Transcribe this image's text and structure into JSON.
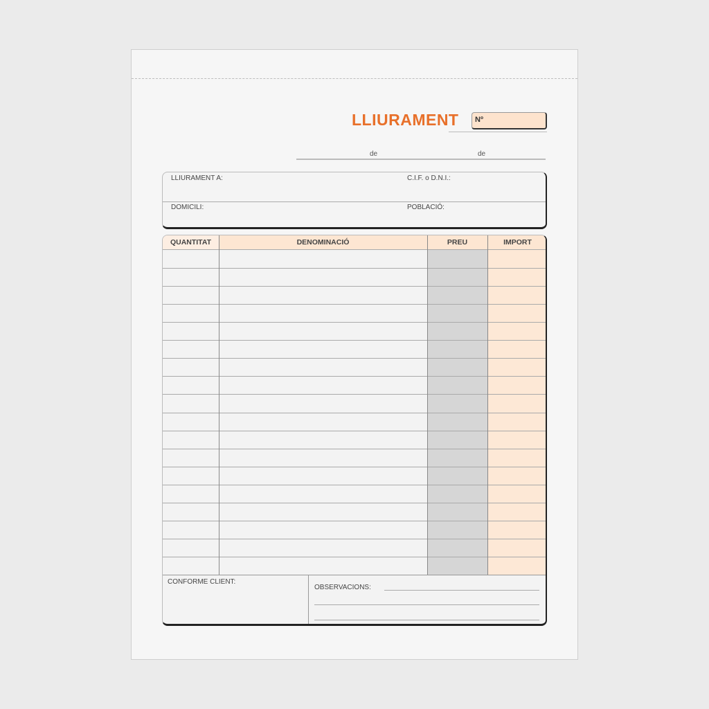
{
  "document": {
    "title": "LLIURAMENT",
    "number_label": "Nº",
    "date_connectors": [
      "de",
      "de"
    ],
    "client": {
      "delivered_to_label": "LLIURAMENT A:",
      "tax_id_label": "C.I.F. o D.N.I.:",
      "address_label": "DOMICILI:",
      "town_label": "POBLACIÓ:"
    },
    "table": {
      "columns": [
        "QUANTITAT",
        "DENOMINACIÓ",
        "PREU",
        "IMPORT"
      ],
      "rows": 18
    },
    "footer": {
      "client_approval_label": "CONFORME CLIENT:",
      "observations_label": "OBSERVACIONS:"
    },
    "colors": {
      "accent": "#e8702a",
      "header_fill": "#fde6d2",
      "price_fill": "#d6d6d6",
      "amount_fill": "#fde8d6"
    }
  }
}
